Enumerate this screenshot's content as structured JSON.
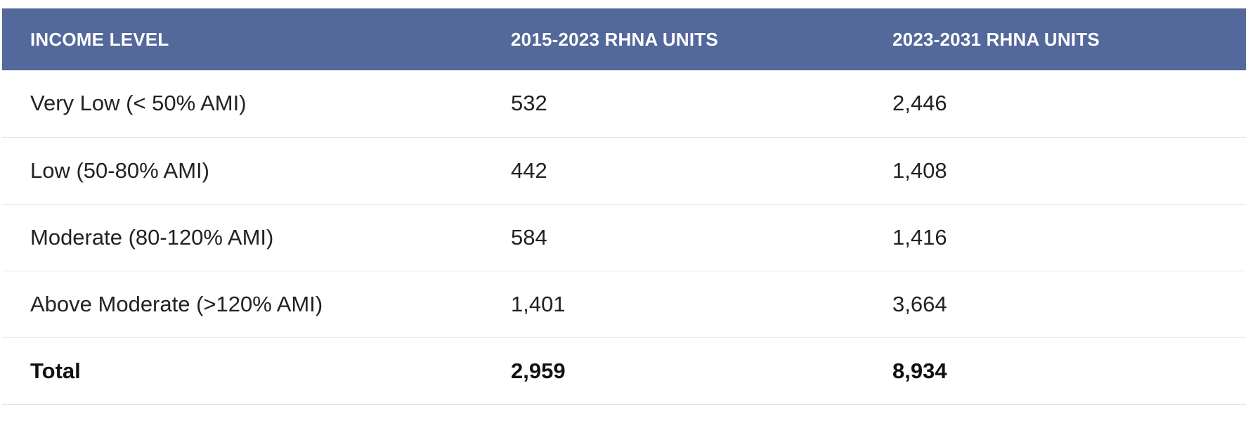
{
  "table": {
    "headers": [
      "INCOME LEVEL",
      "2015-2023 RHNA UNITS",
      "2023-2031 RHNA UNITS"
    ],
    "rows": [
      [
        "Very Low (< 50% AMI)",
        "532",
        "2,446"
      ],
      [
        "Low (50-80% AMI)",
        "442",
        "1,408"
      ],
      [
        "Moderate (80-120% AMI)",
        "584",
        "1,416"
      ],
      [
        "Above Moderate (>120% AMI)",
        "1,401",
        "3,664"
      ]
    ],
    "total": [
      "Total",
      "2,959",
      "8,934"
    ]
  },
  "colors": {
    "header_bg": "#53689b",
    "header_text": "#ffffff",
    "row_divider": "#e3e3e3"
  }
}
